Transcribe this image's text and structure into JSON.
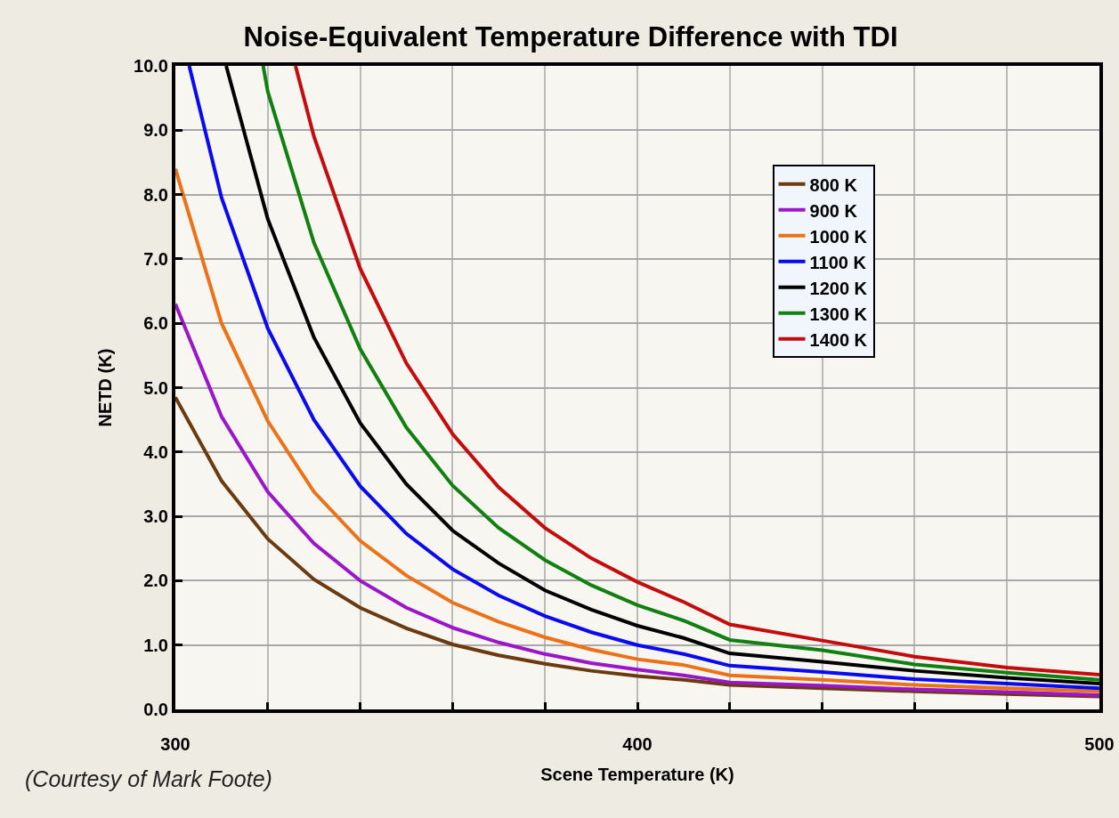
{
  "chart_data": {
    "type": "line",
    "title": "Noise-Equivalent Temperature Difference with TDI",
    "xlabel": "Scene Temperature (K)",
    "ylabel": "NETD (K)",
    "annotations": [
      "(Courtesy of Mark Foote)"
    ],
    "x": [
      300,
      310,
      320,
      330,
      340,
      350,
      360,
      370,
      380,
      390,
      400,
      410,
      420,
      440,
      460,
      480,
      500
    ],
    "series": [
      {
        "name": "800 K",
        "color": "#6b3a0f",
        "values": [
          4.85,
          3.55,
          2.65,
          2.02,
          1.58,
          1.26,
          1.01,
          0.84,
          0.71,
          0.6,
          0.52,
          0.46,
          0.38,
          0.33,
          0.28,
          0.24,
          0.2
        ]
      },
      {
        "name": "900 K",
        "color": "#9b16c8",
        "values": [
          6.3,
          4.55,
          3.38,
          2.58,
          2.0,
          1.58,
          1.27,
          1.04,
          0.86,
          0.72,
          0.62,
          0.53,
          0.42,
          0.37,
          0.31,
          0.27,
          0.22
        ]
      },
      {
        "name": "1000 K",
        "color": "#ec7218",
        "values": [
          8.4,
          6.0,
          4.48,
          3.38,
          2.62,
          2.08,
          1.66,
          1.36,
          1.12,
          0.93,
          0.78,
          0.69,
          0.53,
          0.46,
          0.38,
          0.33,
          0.28
        ]
      },
      {
        "name": "1100 K",
        "color": "#0a0af0",
        "x": [
          303,
          310,
          320,
          330,
          340,
          350,
          360,
          370,
          380,
          390,
          400,
          410,
          420,
          440,
          460,
          480,
          500
        ],
        "values": [
          10,
          7.95,
          5.92,
          4.5,
          3.47,
          2.73,
          2.18,
          1.77,
          1.45,
          1.2,
          1.0,
          0.86,
          0.68,
          0.58,
          0.47,
          0.4,
          0.33
        ]
      },
      {
        "name": "1200 K",
        "color": "#000000",
        "x": [
          311,
          320,
          330,
          340,
          350,
          360,
          370,
          380,
          390,
          400,
          410,
          420,
          440,
          460,
          480,
          500
        ],
        "values": [
          10,
          7.62,
          5.78,
          4.45,
          3.5,
          2.78,
          2.27,
          1.85,
          1.55,
          1.3,
          1.11,
          0.87,
          0.74,
          0.6,
          0.49,
          0.4
        ]
      },
      {
        "name": "1300 K",
        "color": "#118011",
        "x": [
          319,
          320,
          330,
          340,
          350,
          360,
          370,
          380,
          390,
          400,
          410,
          420,
          440,
          460,
          480,
          500
        ],
        "values": [
          10,
          9.6,
          7.25,
          5.6,
          4.38,
          3.48,
          2.82,
          2.32,
          1.93,
          1.62,
          1.38,
          1.08,
          0.92,
          0.7,
          0.57,
          0.46
        ]
      },
      {
        "name": "1400 K",
        "color": "#c40c0c",
        "x": [
          326,
          330,
          340,
          350,
          360,
          370,
          380,
          390,
          400,
          410,
          420,
          440,
          460,
          480,
          500
        ],
        "values": [
          10,
          8.9,
          6.85,
          5.38,
          4.28,
          3.45,
          2.82,
          2.35,
          1.98,
          1.67,
          1.32,
          1.07,
          0.82,
          0.65,
          0.54
        ]
      }
    ],
    "xlim": [
      300,
      500
    ],
    "xticks": [
      300,
      {
        "value": 320,
        "label": null
      },
      {
        "value": 340,
        "label": null
      },
      {
        "value": 360,
        "label": null
      },
      {
        "value": 380,
        "label": null
      },
      400,
      {
        "value": 420,
        "label": null
      },
      {
        "value": 440,
        "label": null
      },
      {
        "value": 460,
        "label": null
      },
      {
        "value": 480,
        "label": null
      },
      500
    ],
    "ylim": [
      0,
      10
    ],
    "yticks": [
      {
        "value": 0,
        "label": "0.0"
      },
      {
        "value": 1,
        "label": "1.0"
      },
      {
        "value": 2,
        "label": "2.0"
      },
      {
        "value": 3,
        "label": "3.0"
      },
      {
        "value": 4,
        "label": "4.0"
      },
      {
        "value": 5,
        "label": "5.0"
      },
      {
        "value": 6,
        "label": "6.0"
      },
      {
        "value": 7,
        "label": "7.0"
      },
      {
        "value": 8,
        "label": "8.0"
      },
      {
        "value": 9,
        "label": "9.0"
      },
      {
        "value": 10,
        "label": "10.0"
      }
    ],
    "grid": true,
    "legend": "top right",
    "marker": "none",
    "line_style": "solid"
  }
}
